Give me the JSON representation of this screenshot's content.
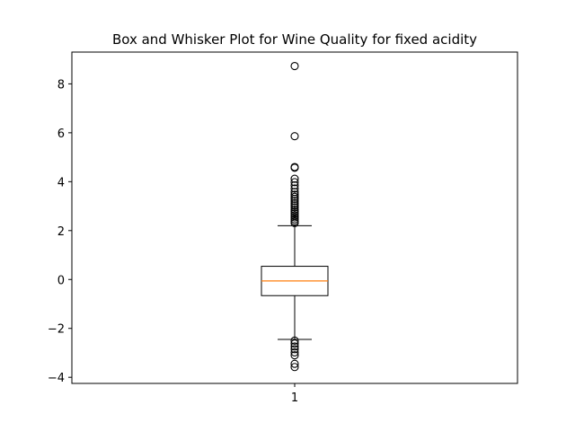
{
  "chart_data": {
    "type": "box",
    "title": "Box and Whisker Plot for Wine Quality for fixed acidity",
    "xlabel": "",
    "ylabel": "",
    "categories": [
      "1"
    ],
    "ylim": [
      -4.25,
      9.3
    ],
    "yticks": [
      -4,
      -2,
      0,
      2,
      4,
      6,
      8
    ],
    "ytick_labels": [
      "−4",
      "−2",
      "0",
      "2",
      "4",
      "6",
      "8"
    ],
    "grid": false,
    "box": {
      "whisker_low": -2.45,
      "q1": -0.66,
      "median": -0.06,
      "q3": 0.54,
      "whisker_high": 2.2,
      "outliers": [
        8.73,
        5.86,
        4.6,
        4.57,
        4.12,
        3.98,
        3.85,
        3.72,
        3.58,
        3.47,
        3.38,
        3.3,
        3.21,
        3.12,
        3.03,
        2.95,
        2.86,
        2.78,
        2.7,
        2.62,
        2.54,
        2.46,
        2.38,
        2.31,
        -2.5,
        -2.62,
        -2.74,
        -2.85,
        -2.98,
        -3.1,
        -3.45,
        -3.58
      ]
    },
    "colors": {
      "box": "#000000",
      "median": "#ff7f0e",
      "outlier": "#000000"
    }
  }
}
